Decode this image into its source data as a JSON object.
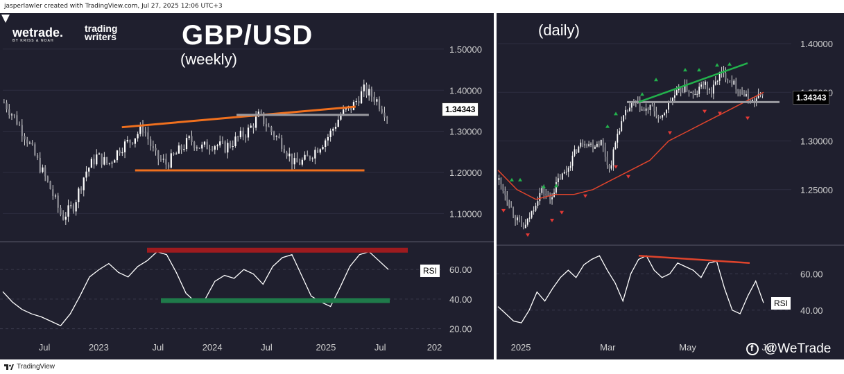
{
  "header": {
    "credit": "jasperlawler created with TradingView.com, Jul 27, 2025 12:06 UTC+3"
  },
  "logos": {
    "wetrade": "wetrade.",
    "wetrade_tagline": "BY KRISS & NOAH",
    "trading_writers_line1": "trading",
    "trading_writers_line2": "writers"
  },
  "footer": {
    "tradingview": "TradingView",
    "handle": "@WeTrade"
  },
  "colors": {
    "bg": "#1f1f2e",
    "trend": "#f0701e",
    "resistance": "#9e1b1f",
    "support": "#1f7a4a",
    "green_trend": "#22b24c",
    "ma": "#e0442c",
    "level_grey": "#9a9aa0"
  },
  "chart_data": [
    {
      "type": "candlestick",
      "title": "GBP/USD",
      "subtitle": "(weekly)",
      "price_axis": {
        "min": 1.04,
        "max": 1.52,
        "ticks": [
          1.5,
          1.4,
          1.3,
          1.2,
          1.1
        ],
        "tick_labels": [
          "1.50000",
          "1.40000",
          "1.30000",
          "1.20000",
          "1.10000"
        ]
      },
      "x_axis": {
        "labels": [
          "Jul",
          "2023",
          "Jul",
          "2024",
          "Jul",
          "2025",
          "Jul",
          "202"
        ],
        "positions": [
          0.09,
          0.2,
          0.32,
          0.43,
          0.54,
          0.66,
          0.77,
          0.88
        ]
      },
      "last_price": "1.34343",
      "close_path": [
        1.37,
        1.33,
        1.28,
        1.22,
        1.16,
        1.09,
        1.12,
        1.2,
        1.24,
        1.22,
        1.26,
        1.28,
        1.31,
        1.24,
        1.22,
        1.25,
        1.28,
        1.26,
        1.27,
        1.26,
        1.28,
        1.3,
        1.34,
        1.3,
        1.27,
        1.22,
        1.23,
        1.26,
        1.29,
        1.34,
        1.36,
        1.4,
        1.38,
        1.34
      ],
      "lines": [
        {
          "name": "rising-trendline",
          "from": [
            0.27,
            1.31
          ],
          "to": [
            0.8,
            1.36
          ]
        },
        {
          "name": "support-line",
          "from": [
            0.3,
            1.205
          ],
          "to": [
            0.82,
            1.205
          ]
        },
        {
          "name": "level-line",
          "from": [
            0.53,
            1.34
          ],
          "to": [
            0.83,
            1.34
          ]
        }
      ],
      "rsi": {
        "label": "RSI",
        "axis": {
          "min": 17,
          "max": 75,
          "ticks": [
            60,
            40,
            20
          ],
          "tick_labels": [
            "60.00",
            "40.00",
            "20.00"
          ]
        },
        "values": [
          45,
          38,
          33,
          30,
          28,
          25,
          22,
          30,
          42,
          55,
          60,
          64,
          58,
          55,
          62,
          66,
          72,
          70,
          58,
          44,
          38,
          40,
          52,
          56,
          54,
          60,
          57,
          50,
          62,
          68,
          70,
          56,
          42,
          38,
          35,
          48,
          62,
          70,
          72,
          66,
          60
        ],
        "resistance": 73,
        "support": 39
      }
    },
    {
      "type": "candlestick",
      "subtitle": "(daily)",
      "price_axis": {
        "min": 1.2,
        "max": 1.41,
        "ticks": [
          1.4,
          1.35,
          1.3,
          1.25
        ],
        "tick_labels": [
          "1.40000",
          "1.35000",
          "1.30000",
          "1.25000"
        ]
      },
      "x_axis": {
        "labels": [
          "2025",
          "Mar",
          "May",
          "Jul"
        ],
        "positions": [
          0.07,
          0.32,
          0.55,
          0.78
        ]
      },
      "last_price": "1.34343",
      "close_path": [
        1.26,
        1.24,
        1.22,
        1.21,
        1.23,
        1.25,
        1.24,
        1.26,
        1.27,
        1.29,
        1.3,
        1.295,
        1.3,
        1.27,
        1.31,
        1.33,
        1.34,
        1.33,
        1.335,
        1.32,
        1.34,
        1.35,
        1.355,
        1.345,
        1.36,
        1.35,
        1.37,
        1.365,
        1.355,
        1.345,
        1.34,
        1.35
      ],
      "ma_path": [
        1.27,
        1.25,
        1.24,
        1.245,
        1.245,
        1.25,
        1.26,
        1.27,
        1.28,
        1.3,
        1.31,
        1.32,
        1.33,
        1.34,
        1.35
      ],
      "level": 1.34,
      "rsi": {
        "label": "RSI",
        "axis": {
          "min": 30,
          "max": 72,
          "ticks": [
            60,
            40
          ],
          "tick_labels": [
            "60.00",
            "40.00"
          ]
        },
        "values": [
          42,
          38,
          34,
          33,
          40,
          50,
          45,
          52,
          58,
          62,
          58,
          65,
          68,
          70,
          62,
          55,
          45,
          60,
          68,
          70,
          62,
          58,
          60,
          66,
          64,
          62,
          58,
          66,
          67,
          52,
          40,
          38,
          48,
          56,
          44
        ],
        "trend_from": 70,
        "trend_to": 66
      }
    }
  ]
}
